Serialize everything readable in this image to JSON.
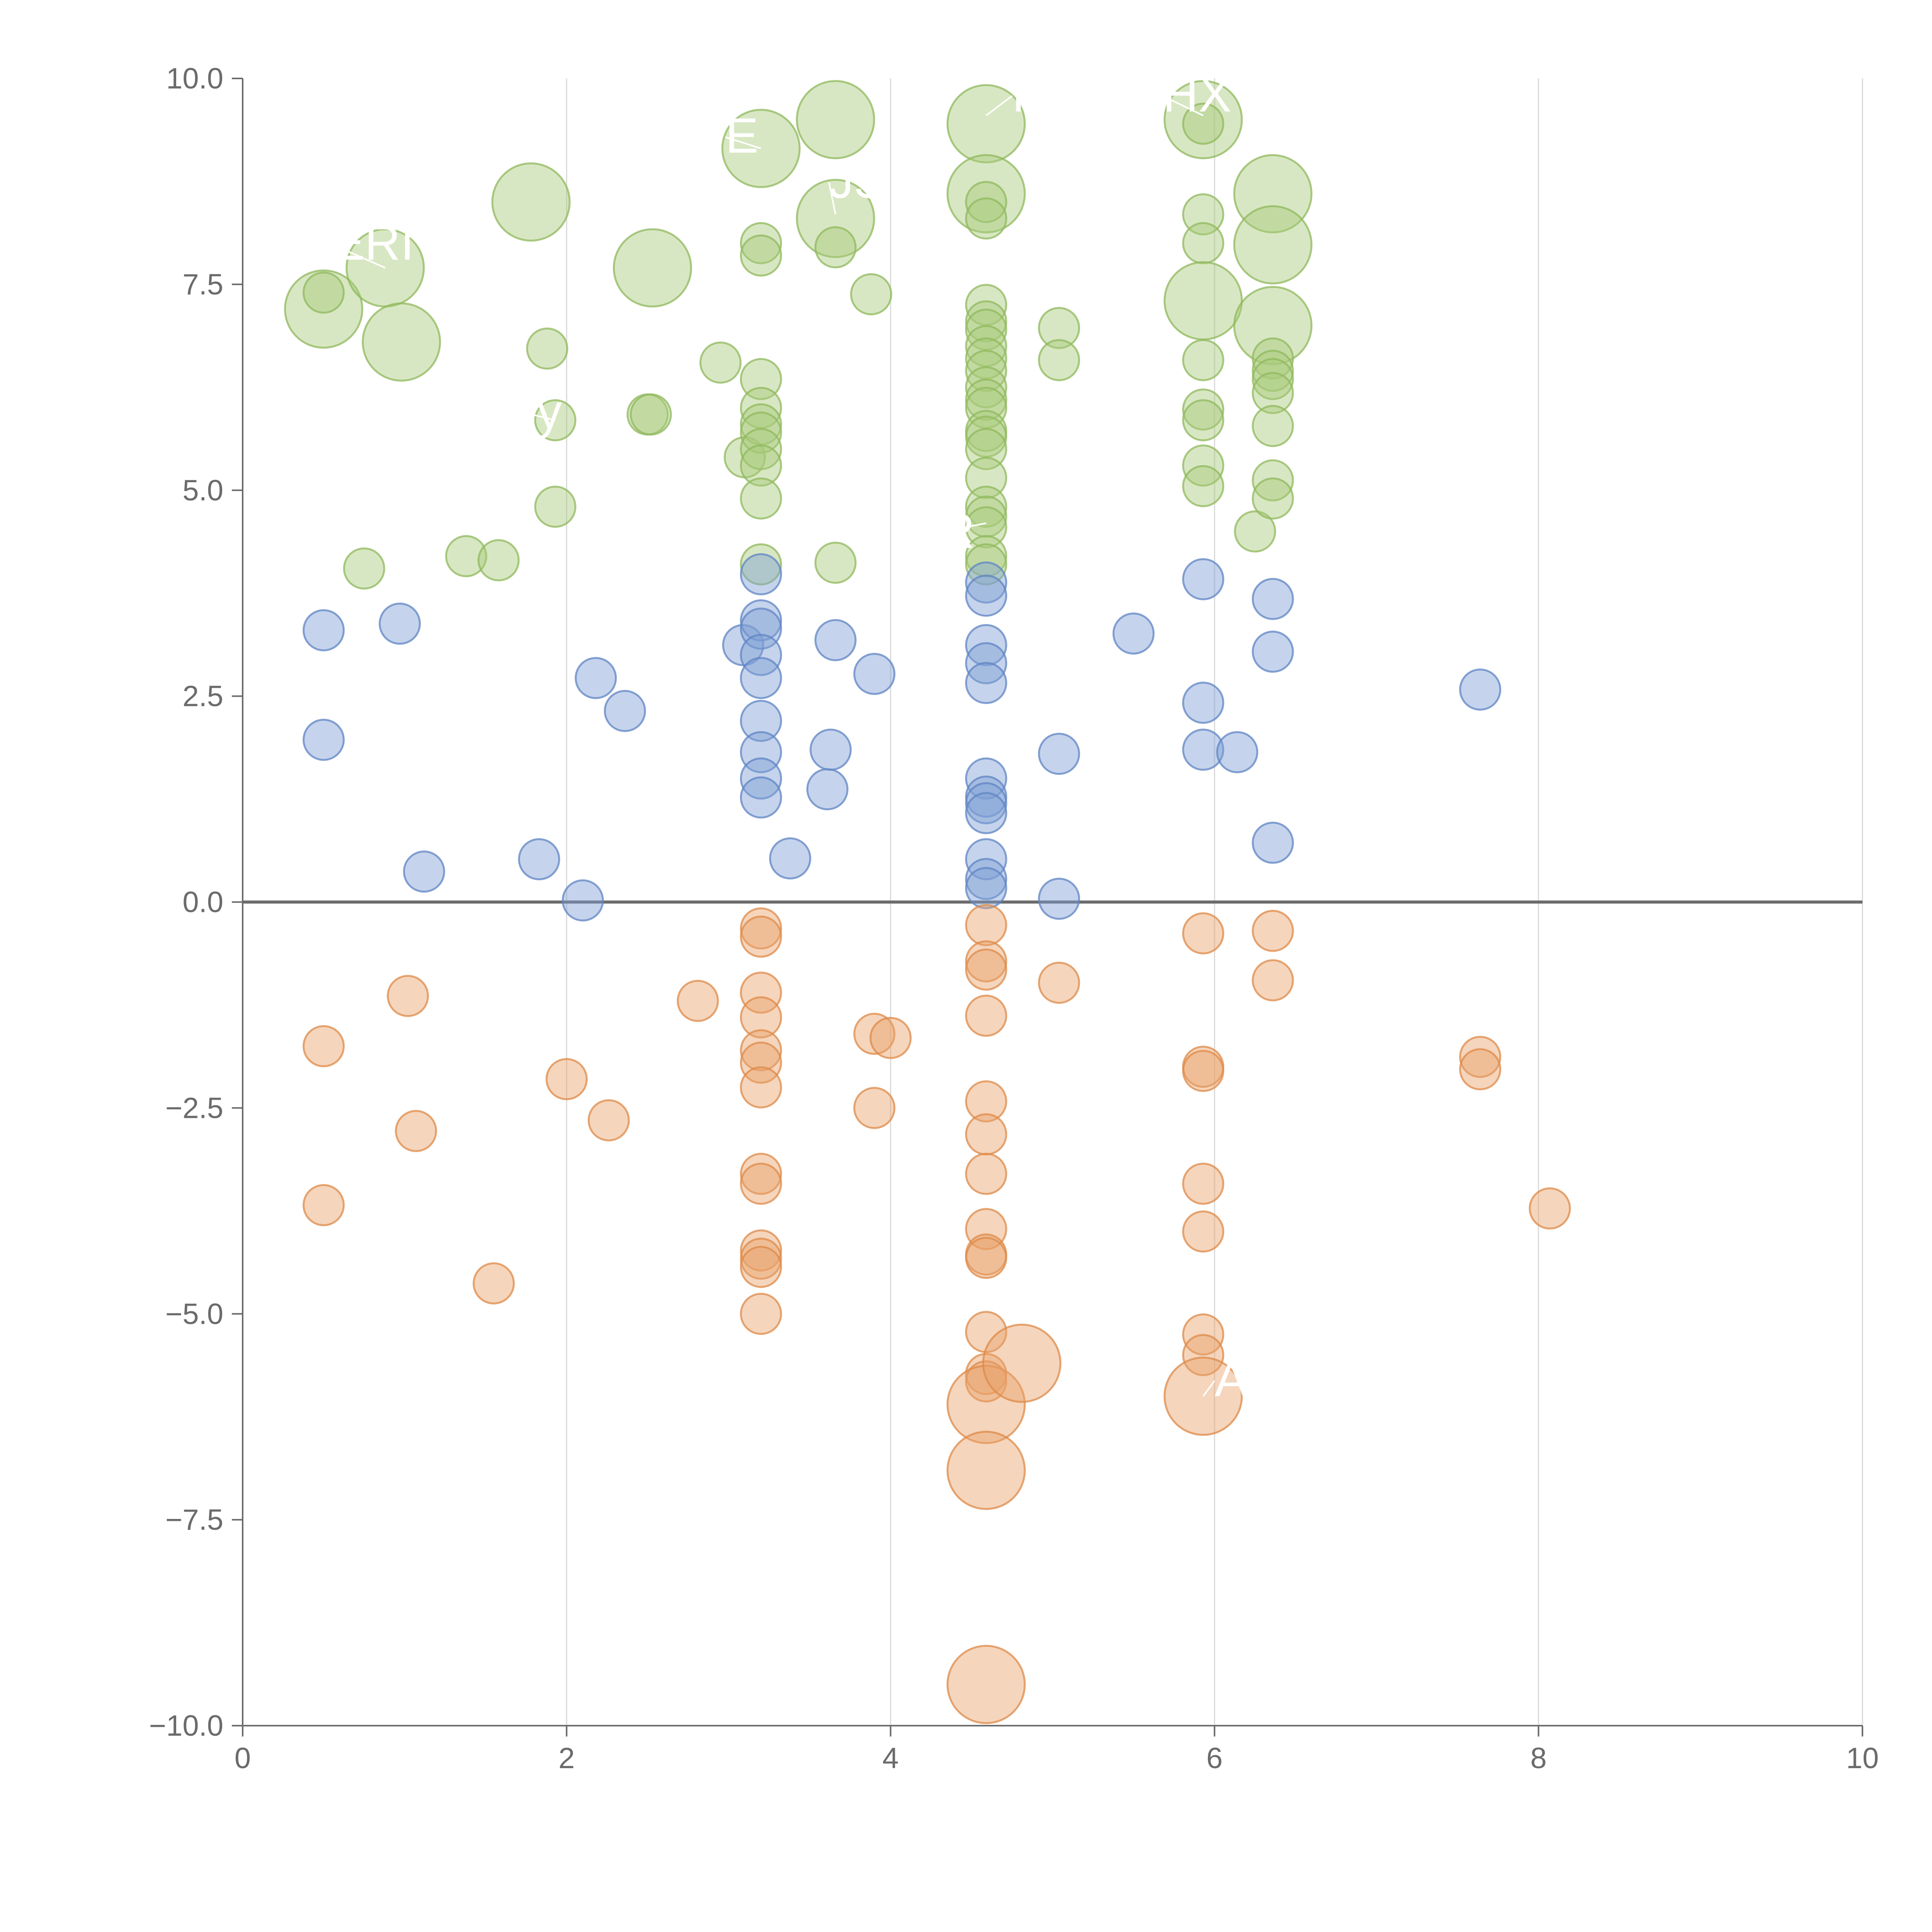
{
  "chart_data": {
    "type": "scatter",
    "title": "",
    "xlabel": "",
    "ylabel": "",
    "xlim": [
      0,
      10
    ],
    "ylim": [
      -10,
      10
    ],
    "x_ticks": [
      "0",
      "2",
      "4",
      "6",
      "8",
      "10"
    ],
    "y_ticks": [
      "10.0",
      "7.5",
      "5.0",
      "2.5",
      "0.0",
      "−2.5",
      "−5.0",
      "−7.5",
      "−10.0"
    ],
    "x_tick_values": [
      0,
      2,
      4,
      6,
      8,
      10
    ],
    "y_tick_values": [
      10,
      7.5,
      5,
      2.5,
      0,
      -2.5,
      -5,
      -7.5,
      -10
    ],
    "vertical_grid": true,
    "horizontal_grid": false,
    "zero_line": true,
    "colors": {
      "green_fill": "#a9c97a",
      "green_stroke": "#8fb85c",
      "blue_fill": "#7f9fd4",
      "blue_stroke": "#5f84c4",
      "orange_fill": "#e8a26a",
      "orange_stroke": "#dd8a48",
      "axis": "#6b6b6b",
      "grid": "#d9d9d9",
      "label": "#ffffff"
    },
    "series": [
      {
        "color": "green",
        "points": [
          [
            0.5,
            7.2,
            2
          ],
          [
            0.5,
            7.4,
            1
          ],
          [
            0.88,
            7.7,
            2
          ],
          [
            0.98,
            6.8,
            2
          ],
          [
            0.75,
            4.05,
            1
          ],
          [
            1.38,
            4.2,
            1
          ],
          [
            1.58,
            4.15,
            1
          ],
          [
            1.78,
            8.5,
            2
          ],
          [
            1.88,
            6.72,
            1
          ],
          [
            1.93,
            5.85,
            1
          ],
          [
            1.93,
            4.8,
            1
          ],
          [
            2.5,
            5.92,
            1
          ],
          [
            2.52,
            5.92,
            1
          ],
          [
            2.53,
            7.7,
            2
          ],
          [
            2.95,
            6.55,
            1
          ],
          [
            3.1,
            5.4,
            1
          ],
          [
            3.2,
            9.15,
            2
          ],
          [
            3.2,
            8.0,
            1
          ],
          [
            3.2,
            7.85,
            1
          ],
          [
            3.2,
            6.35,
            1
          ],
          [
            3.2,
            6.0,
            1
          ],
          [
            3.2,
            5.8,
            1
          ],
          [
            3.2,
            5.7,
            1
          ],
          [
            3.2,
            5.5,
            1
          ],
          [
            3.2,
            5.3,
            1
          ],
          [
            3.2,
            4.9,
            1
          ],
          [
            3.2,
            4.1,
            1
          ],
          [
            3.66,
            9.5,
            2
          ],
          [
            3.66,
            8.3,
            2
          ],
          [
            3.66,
            7.95,
            1
          ],
          [
            3.66,
            4.12,
            1
          ],
          [
            3.88,
            7.38,
            1
          ],
          [
            4.59,
            9.45,
            2
          ],
          [
            4.59,
            8.6,
            2
          ],
          [
            4.59,
            8.5,
            1
          ],
          [
            4.59,
            8.3,
            1
          ],
          [
            4.59,
            7.25,
            1
          ],
          [
            4.59,
            7.05,
            1
          ],
          [
            4.59,
            6.95,
            1
          ],
          [
            4.59,
            6.75,
            1
          ],
          [
            4.59,
            6.6,
            1
          ],
          [
            4.59,
            6.45,
            1
          ],
          [
            4.59,
            6.25,
            1
          ],
          [
            4.59,
            6.1,
            1
          ],
          [
            4.59,
            6.0,
            1
          ],
          [
            4.59,
            5.72,
            1
          ],
          [
            4.59,
            5.65,
            1
          ],
          [
            4.59,
            5.5,
            1
          ],
          [
            4.59,
            5.15,
            1
          ],
          [
            4.59,
            4.8,
            1
          ],
          [
            4.59,
            4.68,
            1
          ],
          [
            4.59,
            4.55,
            1
          ],
          [
            4.59,
            4.2,
            1
          ],
          [
            4.59,
            4.1,
            1
          ],
          [
            5.04,
            6.97,
            1
          ],
          [
            5.04,
            6.58,
            1
          ],
          [
            5.93,
            9.5,
            2
          ],
          [
            5.93,
            9.45,
            1
          ],
          [
            5.93,
            8.35,
            1
          ],
          [
            5.93,
            8.0,
            1
          ],
          [
            5.93,
            7.3,
            2
          ],
          [
            5.93,
            6.58,
            1
          ],
          [
            5.93,
            5.98,
            1
          ],
          [
            5.93,
            5.85,
            1
          ],
          [
            5.93,
            5.3,
            1
          ],
          [
            5.93,
            5.05,
            1
          ],
          [
            6.25,
            4.5,
            1
          ],
          [
            6.36,
            8.6,
            2
          ],
          [
            6.36,
            7.98,
            2
          ],
          [
            6.36,
            7.0,
            2
          ],
          [
            6.36,
            6.6,
            1
          ],
          [
            6.36,
            6.45,
            1
          ],
          [
            6.36,
            6.35,
            1
          ],
          [
            6.36,
            6.18,
            1
          ],
          [
            6.36,
            5.78,
            1
          ],
          [
            6.36,
            5.12,
            1
          ],
          [
            6.36,
            4.9,
            1
          ]
        ]
      },
      {
        "color": "blue",
        "points": [
          [
            0.5,
            3.3,
            1
          ],
          [
            0.5,
            1.97,
            1
          ],
          [
            0.97,
            3.38,
            1
          ],
          [
            1.12,
            0.37,
            1
          ],
          [
            1.83,
            0.52,
            1
          ],
          [
            2.1,
            0.02,
            1
          ],
          [
            2.18,
            2.72,
            1
          ],
          [
            2.36,
            2.32,
            1
          ],
          [
            3.09,
            3.12,
            1
          ],
          [
            3.2,
            3.98,
            1
          ],
          [
            3.2,
            3.42,
            1
          ],
          [
            3.2,
            3.32,
            1
          ],
          [
            3.2,
            3.0,
            1
          ],
          [
            3.2,
            2.72,
            1
          ],
          [
            3.2,
            2.2,
            1
          ],
          [
            3.2,
            1.82,
            1
          ],
          [
            3.2,
            1.5,
            1
          ],
          [
            3.2,
            1.27,
            1
          ],
          [
            3.38,
            0.53,
            1
          ],
          [
            3.61,
            1.37,
            1
          ],
          [
            3.63,
            1.85,
            1
          ],
          [
            3.66,
            3.18,
            1
          ],
          [
            3.9,
            2.77,
            1
          ],
          [
            4.59,
            3.88,
            1
          ],
          [
            4.59,
            3.72,
            1
          ],
          [
            4.59,
            3.12,
            1
          ],
          [
            4.59,
            2.9,
            1
          ],
          [
            4.59,
            2.66,
            1
          ],
          [
            4.59,
            1.5,
            1
          ],
          [
            4.59,
            1.28,
            1
          ],
          [
            4.59,
            1.2,
            1
          ],
          [
            4.59,
            1.08,
            1
          ],
          [
            4.59,
            0.52,
            1
          ],
          [
            4.59,
            0.28,
            1
          ],
          [
            4.59,
            0.17,
            1
          ],
          [
            5.04,
            1.8,
            1
          ],
          [
            5.04,
            0.04,
            1
          ],
          [
            5.5,
            3.26,
            1
          ],
          [
            5.93,
            3.92,
            1
          ],
          [
            5.93,
            2.42,
            1
          ],
          [
            5.93,
            1.85,
            1
          ],
          [
            6.14,
            1.82,
            1
          ],
          [
            6.36,
            3.68,
            1
          ],
          [
            6.36,
            3.04,
            1
          ],
          [
            6.36,
            0.72,
            1
          ],
          [
            7.64,
            2.58,
            1
          ]
        ]
      },
      {
        "color": "orange",
        "points": [
          [
            0.5,
            -1.75,
            1
          ],
          [
            0.5,
            -3.68,
            1
          ],
          [
            1.02,
            -1.14,
            1
          ],
          [
            1.07,
            -2.78,
            1
          ],
          [
            1.55,
            -4.63,
            1
          ],
          [
            2.0,
            -2.15,
            1
          ],
          [
            2.26,
            -2.65,
            1
          ],
          [
            2.81,
            -1.2,
            1
          ],
          [
            3.2,
            -0.32,
            1
          ],
          [
            3.2,
            -0.42,
            1
          ],
          [
            3.2,
            -1.1,
            1
          ],
          [
            3.2,
            -1.4,
            1
          ],
          [
            3.2,
            -1.8,
            1
          ],
          [
            3.2,
            -1.95,
            1
          ],
          [
            3.2,
            -2.25,
            1
          ],
          [
            3.2,
            -3.3,
            1
          ],
          [
            3.2,
            -3.42,
            1
          ],
          [
            3.2,
            -4.23,
            1
          ],
          [
            3.2,
            -4.33,
            1
          ],
          [
            3.2,
            -4.43,
            1
          ],
          [
            3.2,
            -5.0,
            1
          ],
          [
            3.9,
            -1.6,
            1
          ],
          [
            3.9,
            -2.5,
            1
          ],
          [
            4.0,
            -1.65,
            1
          ],
          [
            4.59,
            -0.28,
            1
          ],
          [
            4.59,
            -0.72,
            1
          ],
          [
            4.59,
            -0.82,
            1
          ],
          [
            4.59,
            -1.38,
            1
          ],
          [
            4.59,
            -2.42,
            1
          ],
          [
            4.59,
            -2.82,
            1
          ],
          [
            4.59,
            -3.3,
            1
          ],
          [
            4.59,
            -3.97,
            1
          ],
          [
            4.59,
            -4.28,
            1
          ],
          [
            4.59,
            -4.32,
            1
          ],
          [
            4.59,
            -5.22,
            1
          ],
          [
            4.59,
            -5.73,
            1
          ],
          [
            4.59,
            -5.82,
            1
          ],
          [
            4.59,
            -6.1,
            2
          ],
          [
            4.59,
            -6.9,
            2
          ],
          [
            4.59,
            -9.5,
            2
          ],
          [
            4.81,
            -5.6,
            2
          ],
          [
            5.04,
            -0.98,
            1
          ],
          [
            5.93,
            -0.38,
            1
          ],
          [
            5.93,
            -2.0,
            1
          ],
          [
            5.93,
            -2.05,
            1
          ],
          [
            5.93,
            -3.42,
            1
          ],
          [
            5.93,
            -4.0,
            1
          ],
          [
            5.93,
            -5.25,
            1
          ],
          [
            5.93,
            -5.5,
            1
          ],
          [
            5.93,
            -6.0,
            2
          ],
          [
            6.36,
            -0.35,
            1
          ],
          [
            6.36,
            -0.95,
            1
          ],
          [
            7.64,
            -1.88,
            1
          ],
          [
            7.64,
            -2.03,
            1
          ],
          [
            8.07,
            -3.72,
            1
          ]
        ]
      }
    ],
    "labels": [
      {
        "text": "R",
        "x": 4.75,
        "y": 9.6,
        "anchor_x": 4.59,
        "anchor_y": 9.55
      },
      {
        "text": "HX",
        "x": 5.68,
        "y": 9.6,
        "anchor_x": 5.93,
        "anchor_y": 9.55
      },
      {
        "text": "E",
        "x": 2.98,
        "y": 9.1,
        "anchor_x": 3.2,
        "anchor_y": 9.15
      },
      {
        "text": "JS",
        "x": 3.62,
        "y": 8.55,
        "anchor_x": 3.66,
        "anchor_y": 8.35
      },
      {
        "text": "ERI",
        "x": 0.55,
        "y": 7.8,
        "anchor_x": 0.88,
        "anchor_y": 7.7
      },
      {
        "text": "‘y",
        "x": 1.75,
        "y": 5.75,
        "anchor_x": 1.93,
        "anchor_y": 5.85
      },
      {
        "text": "R",
        "x": 4.3,
        "y": 4.3,
        "anchor_x": 4.59,
        "anchor_y": 4.6
      },
      {
        "text": "A",
        "x": 6.0,
        "y": -6.0,
        "anchor_x": 5.93,
        "anchor_y": -6.0
      }
    ]
  }
}
